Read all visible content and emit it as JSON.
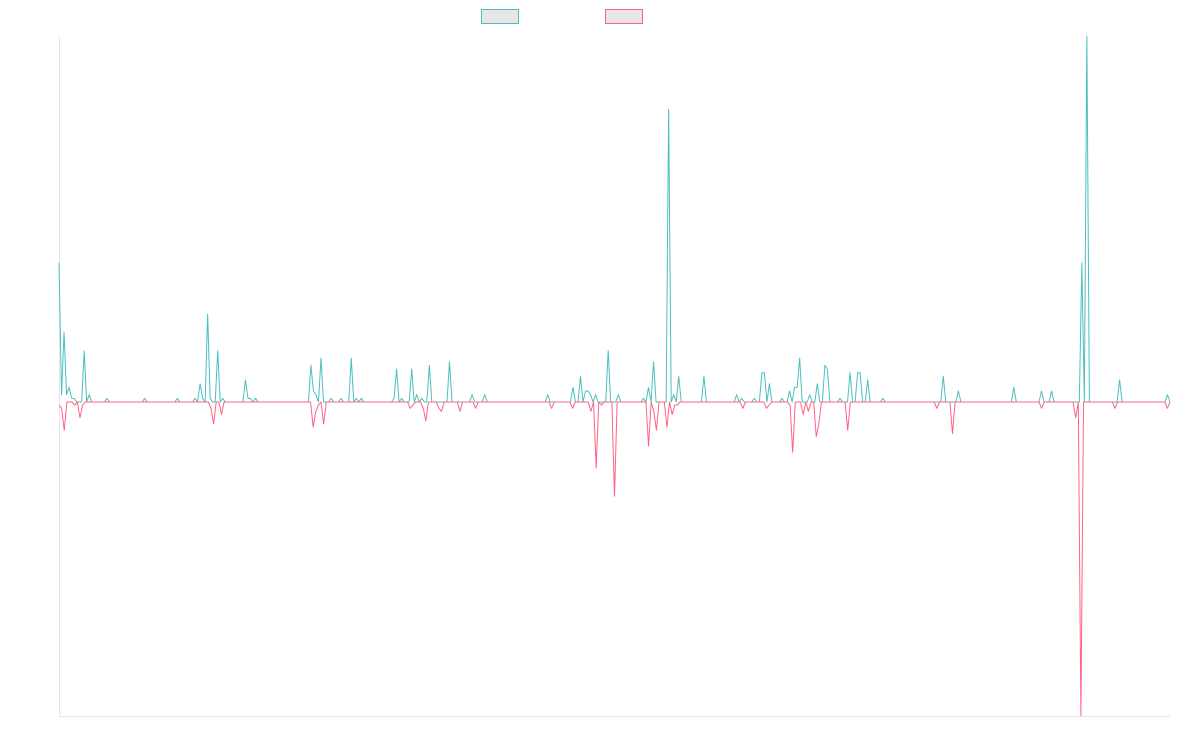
{
  "chart_data": {
    "type": "line",
    "title": "",
    "xlabel": "",
    "ylabel": "",
    "grid": false,
    "legend_placement": "top-center",
    "ylim": [
      -1,
      1
    ],
    "series": [
      {
        "name": "",
        "color": "#4bc0c0",
        "values": [
          0.38,
          0.02,
          0.19,
          0.02,
          0.04,
          0.01,
          0.01,
          0,
          0,
          0,
          0.14,
          0,
          0.02,
          0,
          0,
          0,
          0,
          0,
          0,
          0.01,
          0,
          0,
          0,
          0,
          0,
          0,
          0,
          0,
          0,
          0,
          0,
          0,
          0,
          0,
          0.01,
          0,
          0,
          0,
          0,
          0,
          0,
          0,
          0,
          0,
          0,
          0,
          0,
          0.01,
          0,
          0,
          0,
          0,
          0,
          0,
          0.01,
          0,
          0.05,
          0.01,
          0,
          0.24,
          0.01,
          0,
          0,
          0.14,
          0,
          0.01,
          0,
          0,
          0,
          0,
          0,
          0,
          0,
          0,
          0.06,
          0.01,
          0.01,
          0,
          0.01,
          0,
          0,
          0,
          0,
          0,
          0,
          0,
          0,
          0,
          0,
          0,
          0,
          0,
          0,
          0,
          0,
          0,
          0,
          0,
          0,
          0,
          0.1,
          0.03,
          0.02,
          0,
          0.12,
          0,
          0,
          0,
          0.01,
          0,
          0,
          0,
          0.01,
          0,
          0,
          0,
          0.12,
          0,
          0.01,
          0,
          0.01,
          0,
          0,
          0,
          0,
          0,
          0,
          0,
          0,
          0,
          0,
          0,
          0,
          0.01,
          0.09,
          0,
          0.01,
          0,
          0,
          0,
          0.09,
          0,
          0.02,
          0,
          0.01,
          0,
          0,
          0.1,
          0,
          0,
          0,
          0,
          0,
          0,
          0,
          0.11,
          0,
          0,
          0,
          0,
          0,
          0,
          0,
          0,
          0.02,
          0,
          0,
          0,
          0,
          0.02,
          0,
          0,
          0,
          0,
          0,
          0,
          0,
          0,
          0,
          0,
          0,
          0,
          0,
          0,
          0,
          0,
          0,
          0,
          0,
          0,
          0,
          0,
          0,
          0,
          0.02,
          0,
          0,
          0,
          0,
          0,
          0,
          0,
          0,
          0,
          0.04,
          0,
          0,
          0.07,
          0,
          0.03,
          0.03,
          0.02,
          0,
          0.02,
          0,
          0,
          0,
          0,
          0.14,
          0,
          0,
          0,
          0.02,
          0,
          0,
          0,
          0,
          0,
          0,
          0,
          0,
          0,
          0.01,
          0,
          0.04,
          0,
          0.11,
          0,
          0,
          0,
          0,
          0,
          0.8,
          0,
          0.02,
          0,
          0.07,
          0,
          0,
          0,
          0,
          0,
          0,
          0,
          0,
          0,
          0.07,
          0,
          0,
          0,
          0,
          0,
          0,
          0,
          0,
          0,
          0,
          0,
          0,
          0.02,
          0,
          0.01,
          0,
          0,
          0,
          0,
          0.01,
          0,
          0,
          0.08,
          0.08,
          0,
          0.05,
          0,
          0,
          0,
          0,
          0.01,
          0,
          0,
          0.03,
          0,
          0.04,
          0.04,
          0.12,
          0,
          0,
          0,
          0.02,
          0,
          0,
          0.05,
          0,
          0,
          0.1,
          0.09,
          0,
          0,
          0,
          0,
          0.01,
          0,
          0,
          0,
          0.08,
          0,
          0,
          0.08,
          0.08,
          0,
          0,
          0.06,
          0,
          0,
          0,
          0,
          0,
          0.01,
          0,
          0,
          0,
          0,
          0,
          0,
          0,
          0,
          0,
          0,
          0,
          0,
          0,
          0,
          0,
          0,
          0,
          0,
          0,
          0,
          0,
          0,
          0,
          0.07,
          0,
          0,
          0,
          0,
          0,
          0.03,
          0,
          0,
          0,
          0,
          0,
          0,
          0,
          0,
          0,
          0,
          0,
          0,
          0,
          0,
          0,
          0,
          0,
          0,
          0,
          0,
          0,
          0.04,
          0,
          0,
          0,
          0,
          0,
          0,
          0,
          0,
          0,
          0,
          0.03,
          0,
          0,
          0,
          0.03,
          0,
          0,
          0,
          0,
          0,
          0,
          0,
          0,
          0,
          0,
          0,
          0.38,
          0,
          1,
          0,
          0,
          0,
          0,
          0,
          0,
          0,
          0,
          0,
          0,
          0,
          0,
          0.06,
          0,
          0,
          0,
          0,
          0,
          0,
          0,
          0,
          0,
          0,
          0,
          0,
          0,
          0,
          0,
          0,
          0,
          0,
          0.02,
          0
        ]
      },
      {
        "name": "",
        "color": "#ff6384",
        "values": [
          -0.01,
          -0.02,
          -0.09,
          0,
          0,
          0,
          -0.01,
          0,
          -0.05,
          -0.01,
          0,
          0,
          0,
          0,
          0,
          0,
          0,
          0,
          0,
          0,
          0,
          0,
          0,
          0,
          0,
          0,
          0,
          0,
          0,
          0,
          0,
          0,
          0,
          0,
          0,
          0,
          0,
          0,
          0,
          0,
          0,
          0,
          0,
          0,
          0,
          0,
          0,
          0,
          0,
          0,
          0,
          0,
          0,
          0,
          0,
          0,
          0,
          0,
          -0.02,
          -0.07,
          0,
          0,
          -0.04,
          0,
          0,
          0,
          0,
          0,
          0,
          0,
          0,
          0,
          0,
          0,
          0,
          0,
          0,
          0,
          0,
          0,
          0,
          0,
          0,
          0,
          0,
          0,
          0,
          0,
          0,
          0,
          0,
          0,
          0,
          0,
          0,
          0,
          0,
          -0.08,
          -0.03,
          -0.01,
          0,
          -0.07,
          0,
          0,
          0,
          0,
          0,
          0,
          0,
          0,
          0,
          0,
          0,
          0,
          0,
          0,
          0,
          0,
          0,
          0,
          0,
          0,
          0,
          0,
          0,
          0,
          0,
          0,
          0,
          0,
          0,
          0,
          0,
          0,
          -0.02,
          -0.01,
          0,
          0,
          0,
          -0.02,
          -0.06,
          0,
          0,
          0,
          0,
          -0.02,
          -0.03,
          0,
          0,
          0,
          0,
          0,
          0,
          -0.03,
          0,
          0,
          0,
          0,
          0,
          -0.02,
          0,
          0,
          0,
          0,
          0,
          0,
          0,
          0,
          0,
          0,
          0,
          0,
          0,
          0,
          0,
          0,
          0,
          0,
          0,
          0,
          0,
          0,
          0,
          0,
          0,
          0,
          0,
          0,
          -0.02,
          0,
          0,
          0,
          0,
          0,
          0,
          0,
          -0.02,
          0,
          0,
          0,
          0,
          0,
          0,
          -0.03,
          0,
          -0.21,
          0,
          -0.01,
          0,
          0,
          0,
          0,
          -0.3,
          0,
          0,
          0,
          0,
          0,
          0,
          0,
          0,
          0,
          0,
          0,
          0,
          -0.14,
          0,
          -0.03,
          -0.09,
          0,
          0,
          0,
          -0.08,
          0,
          -0.04,
          -0.01,
          -0.01,
          0,
          0,
          0,
          0,
          0,
          0,
          0,
          0,
          0,
          0,
          0,
          0,
          0,
          0,
          0,
          0,
          0,
          0,
          0,
          0,
          0,
          0,
          0,
          0,
          -0.02,
          0,
          0,
          0,
          0,
          0,
          0,
          0,
          0,
          -0.02,
          -0.01,
          0,
          0,
          0,
          0,
          0,
          0,
          0,
          -0.01,
          -0.16,
          0,
          0,
          0,
          -0.04,
          0,
          -0.03,
          0,
          0,
          -0.11,
          -0.07,
          0,
          0,
          0,
          0,
          0,
          0,
          0,
          0,
          0,
          0,
          -0.09,
          0,
          0,
          0,
          0,
          0,
          0,
          0,
          0,
          0,
          0,
          0,
          0,
          0,
          0,
          0,
          0,
          0,
          0,
          0,
          0,
          0,
          0,
          0,
          0,
          0,
          0,
          0,
          0,
          0,
          0,
          0,
          0,
          0,
          -0.02,
          0,
          0,
          0,
          0,
          0,
          -0.1,
          0,
          0,
          0,
          0,
          0,
          0,
          0,
          0,
          0,
          0,
          0,
          0,
          0,
          0,
          0,
          0,
          0,
          0,
          0,
          0,
          0,
          0,
          0,
          0,
          0,
          0,
          0,
          0,
          0,
          0,
          0,
          0,
          0,
          -0.02,
          0,
          0,
          0,
          0,
          0,
          0,
          0,
          0,
          0,
          0,
          0,
          0,
          -0.05,
          0,
          -1,
          0,
          0,
          0,
          0,
          0,
          0,
          0,
          0,
          0,
          0,
          0,
          0,
          -0.02,
          0,
          0,
          0,
          0,
          0,
          0,
          0,
          0,
          0,
          0,
          0,
          0,
          0,
          0,
          0,
          0,
          0,
          0,
          0,
          -0.02,
          0
        ]
      }
    ]
  }
}
